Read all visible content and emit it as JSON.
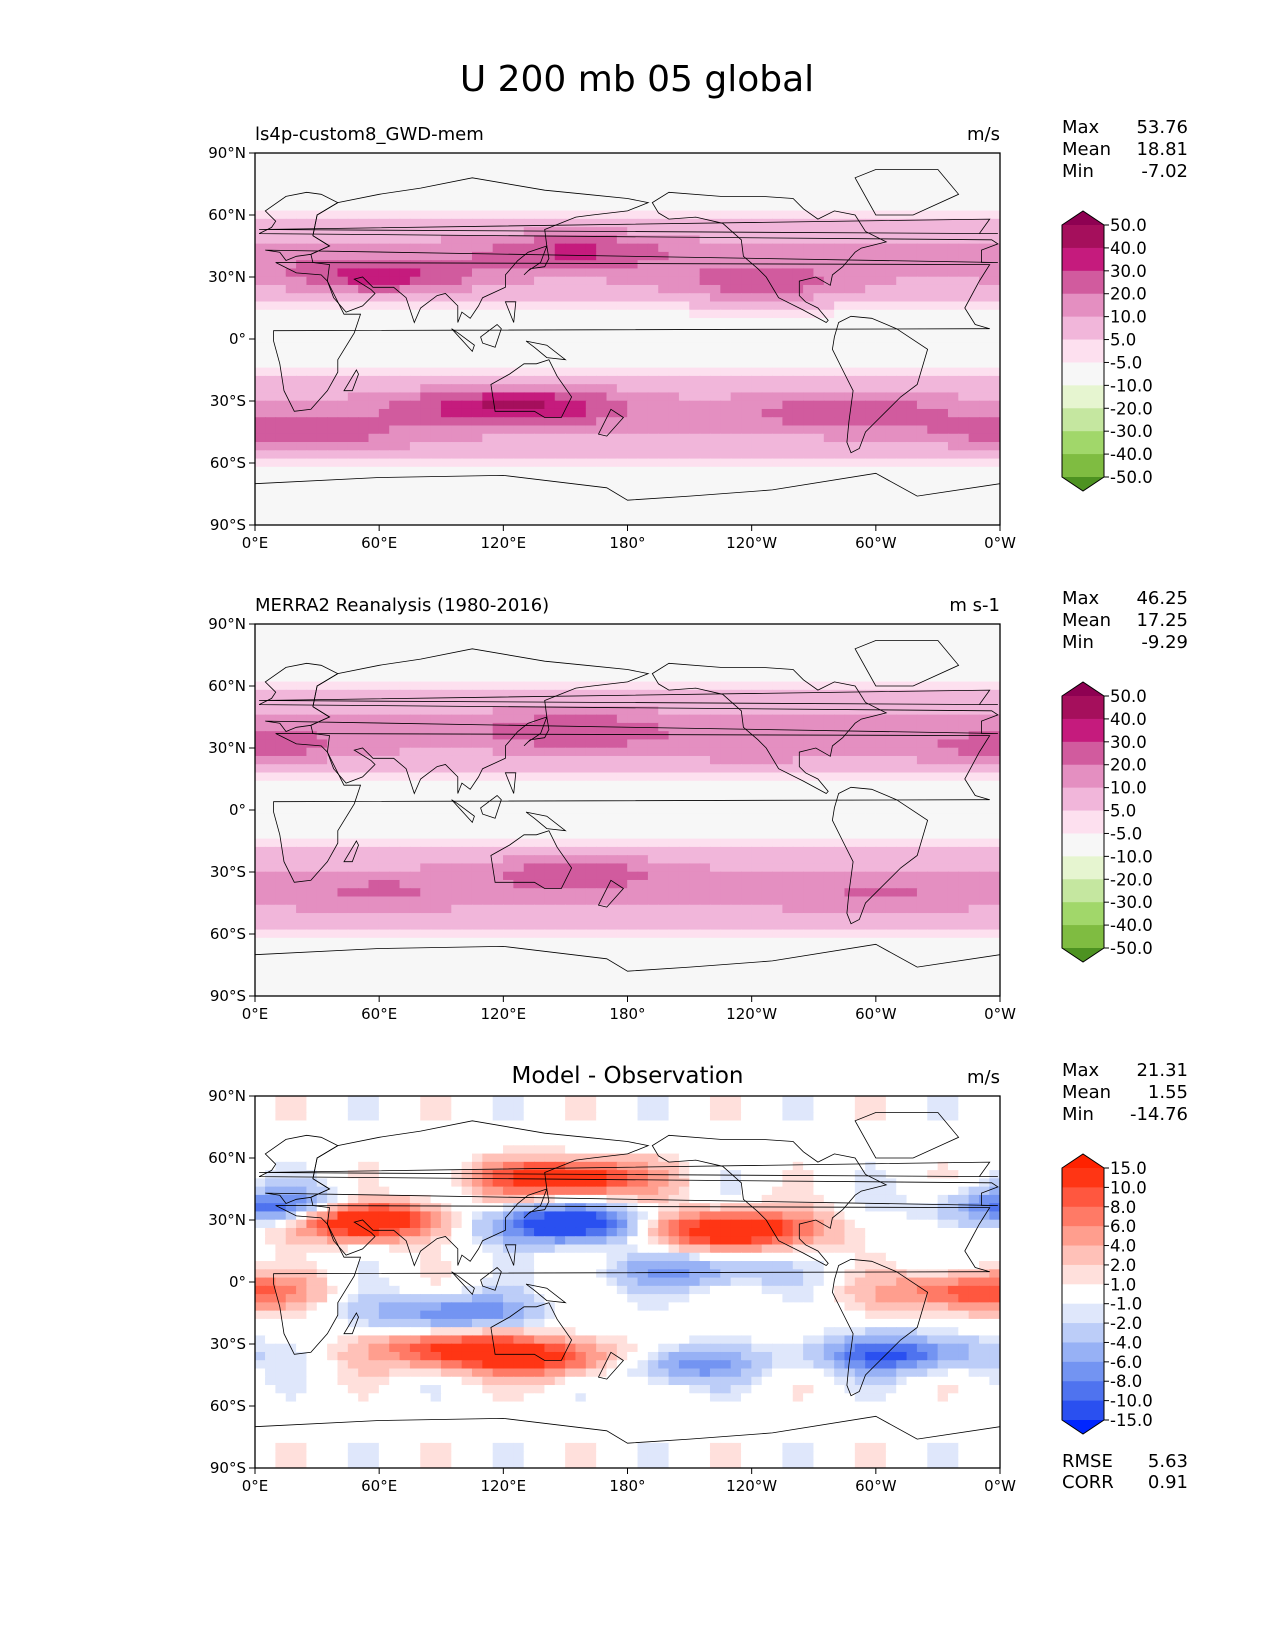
{
  "title": "U 200 mb 05 global",
  "colors": {
    "seq": [
      "#276419",
      "#4d9221",
      "#7fbc41",
      "#a1d76a",
      "#c5e7a0",
      "#e6f5d0",
      "#f7f7f7",
      "#fde0ef",
      "#f1b6da",
      "#e48fc1",
      "#d15b9e",
      "#c51b7d",
      "#a50f5c",
      "#8e0152"
    ],
    "diff": [
      "#0026ff",
      "#2a50f0",
      "#4f73ef",
      "#7394f2",
      "#97b1f5",
      "#bccdf8",
      "#dfe7fb",
      "#ffffff",
      "#ffe0dc",
      "#ffc1b8",
      "#ff9e8e",
      "#ff7a66",
      "#ff573f",
      "#ff3514",
      "#ff2200"
    ],
    "land_outline": "#000000"
  },
  "tick_labels": {
    "lon": [
      "0°E",
      "60°E",
      "120°E",
      "180°",
      "120°W",
      "60°W",
      "0°W"
    ],
    "lat": [
      "90°N",
      "60°N",
      "30°N",
      "0°",
      "30°S",
      "60°S",
      "90°S"
    ]
  },
  "chart_data": [
    {
      "type": "heatmap",
      "panel": "model",
      "title": "ls4p-custom8_GWD-mem",
      "units": "m/s",
      "stats": [
        {
          "label": "Max",
          "value": "53.76"
        },
        {
          "label": "Mean",
          "value": "18.81"
        },
        {
          "label": "Min",
          "value": "-7.02"
        }
      ],
      "colorbar_levels": [
        "-50.0",
        "-40.0",
        "-30.0",
        "-20.0",
        "-10.0",
        "-5.0",
        "5.0",
        "10.0",
        "20.0",
        "30.0",
        "40.0",
        "50.0"
      ],
      "colormap": "seq",
      "xlim": [
        0,
        360
      ],
      "ylim": [
        -90,
        90
      ],
      "jets": [
        {
          "lon": 60,
          "lat": 30,
          "value": 50
        },
        {
          "lon": 155,
          "lat": 43,
          "value": 45
        },
        {
          "lon": 245,
          "lat": 26,
          "value": 45
        },
        {
          "lon": 140,
          "lat": -32,
          "value": 45
        },
        {
          "lon": 285,
          "lat": -35,
          "value": 42
        },
        {
          "lon": 105,
          "lat": -33,
          "value": 40
        },
        {
          "lon": 35,
          "lat": -48,
          "value": 38
        },
        {
          "lon": 355,
          "lat": -45,
          "value": 33
        }
      ]
    },
    {
      "type": "heatmap",
      "panel": "observation",
      "title": "MERRA2 Reanalysis (1980-2016)",
      "units": "m s-1",
      "stats": [
        {
          "label": "Max",
          "value": "46.25"
        },
        {
          "label": "Mean",
          "value": "17.25"
        },
        {
          "label": "Min",
          "value": "-9.29"
        }
      ],
      "colorbar_levels": [
        "-50.0",
        "-40.0",
        "-30.0",
        "-20.0",
        "-10.0",
        "-5.0",
        "5.0",
        "10.0",
        "20.0",
        "30.0",
        "40.0",
        "50.0"
      ],
      "colormap": "seq",
      "xlim": [
        0,
        360
      ],
      "ylim": [
        -90,
        90
      ],
      "jets": [
        {
          "lon": 155,
          "lat": 38,
          "value": 42
        },
        {
          "lon": 155,
          "lat": -30,
          "value": 42
        },
        {
          "lon": 20,
          "lat": 32,
          "value": 32
        },
        {
          "lon": 350,
          "lat": 28,
          "value": 34
        },
        {
          "lon": 240,
          "lat": 27,
          "value": 32
        },
        {
          "lon": 60,
          "lat": -40,
          "value": 34
        },
        {
          "lon": 300,
          "lat": -42,
          "value": 34
        }
      ]
    },
    {
      "type": "heatmap",
      "panel": "difference",
      "title": "Model - Observation",
      "units": "m/s",
      "stats": [
        {
          "label": "Max",
          "value": "21.31"
        },
        {
          "label": "Mean",
          "value": "1.55"
        },
        {
          "label": "Min",
          "value": "-14.76"
        }
      ],
      "metrics": [
        {
          "label": "RMSE",
          "value": "5.63"
        },
        {
          "label": "CORR",
          "value": "0.91"
        }
      ],
      "colorbar_levels": [
        "-15.0",
        "-10.0",
        "-8.0",
        "-6.0",
        "-4.0",
        "-2.0",
        "-1.0",
        "1.0",
        "2.0",
        "4.0",
        "6.0",
        "8.0",
        "10.0",
        "15.0"
      ],
      "colormap": "diff",
      "xlim": [
        0,
        360
      ],
      "ylim": [
        -90,
        90
      ],
      "anomalies": [
        {
          "lon": 150,
          "lat": 50,
          "value": 14
        },
        {
          "lon": 50,
          "lat": 30,
          "value": 18
        },
        {
          "lon": 230,
          "lat": 25,
          "value": 15
        },
        {
          "lon": 150,
          "lat": 28,
          "value": -14
        },
        {
          "lon": 15,
          "lat": 35,
          "value": -12
        },
        {
          "lon": 100,
          "lat": -33,
          "value": 12
        },
        {
          "lon": 150,
          "lat": -38,
          "value": 10
        },
        {
          "lon": 345,
          "lat": -5,
          "value": 10
        },
        {
          "lon": 310,
          "lat": -35,
          "value": -10
        },
        {
          "lon": 200,
          "lat": -40,
          "value": -8
        },
        {
          "lon": 95,
          "lat": -15,
          "value": -8
        },
        {
          "lon": 210,
          "lat": 5,
          "value": -6
        }
      ]
    }
  ]
}
